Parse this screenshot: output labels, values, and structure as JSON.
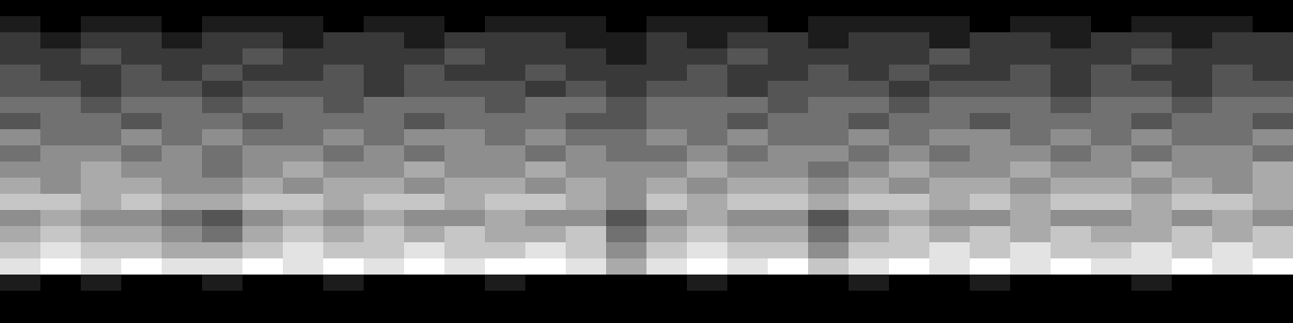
{
  "chart_data": {
    "type": "heatmap",
    "tick_labels": false,
    "cells": [
      [
        0,
        0,
        0,
        0,
        0,
        0,
        0,
        0,
        0,
        0,
        0,
        0,
        0,
        0,
        0,
        0,
        0,
        0,
        0,
        0,
        0,
        0,
        0,
        0,
        0,
        0,
        0,
        0,
        0,
        0,
        0,
        0
      ],
      [
        1,
        0,
        1,
        1,
        0,
        1,
        1,
        1,
        0,
        1,
        1,
        0,
        1,
        1,
        1,
        0,
        1,
        1,
        1,
        0,
        1,
        1,
        1,
        1,
        0,
        1,
        1,
        0,
        1,
        1,
        1,
        0
      ],
      [
        2,
        1,
        2,
        2,
        1,
        2,
        2,
        1,
        2,
        2,
        1,
        2,
        2,
        2,
        1,
        1,
        2,
        1,
        2,
        2,
        1,
        2,
        2,
        1,
        2,
        2,
        1,
        2,
        2,
        1,
        2,
        2
      ],
      [
        2,
        2,
        3,
        2,
        2,
        2,
        3,
        2,
        2,
        2,
        2,
        3,
        2,
        2,
        2,
        1,
        2,
        2,
        3,
        2,
        2,
        2,
        2,
        3,
        2,
        2,
        2,
        2,
        3,
        2,
        2,
        2
      ],
      [
        3,
        2,
        2,
        3,
        2,
        3,
        2,
        2,
        3,
        2,
        3,
        2,
        2,
        3,
        2,
        2,
        2,
        3,
        2,
        2,
        3,
        2,
        3,
        2,
        2,
        3,
        2,
        3,
        2,
        2,
        3,
        2
      ],
      [
        3,
        3,
        2,
        3,
        3,
        2,
        3,
        3,
        3,
        2,
        3,
        3,
        3,
        2,
        3,
        2,
        3,
        3,
        2,
        3,
        3,
        3,
        2,
        3,
        3,
        3,
        2,
        3,
        3,
        2,
        3,
        3
      ],
      [
        4,
        4,
        3,
        4,
        4,
        3,
        4,
        4,
        3,
        4,
        4,
        4,
        3,
        4,
        4,
        3,
        4,
        4,
        4,
        3,
        4,
        4,
        3,
        4,
        4,
        4,
        3,
        4,
        4,
        3,
        4,
        4
      ],
      [
        3,
        4,
        4,
        3,
        4,
        4,
        3,
        4,
        4,
        4,
        3,
        4,
        4,
        4,
        3,
        3,
        4,
        4,
        3,
        4,
        4,
        3,
        4,
        4,
        3,
        4,
        4,
        4,
        3,
        4,
        4,
        3
      ],
      [
        5,
        4,
        4,
        5,
        4,
        5,
        4,
        4,
        5,
        4,
        5,
        5,
        4,
        5,
        4,
        4,
        5,
        4,
        5,
        4,
        4,
        5,
        4,
        5,
        5,
        4,
        5,
        4,
        5,
        4,
        4,
        5
      ],
      [
        4,
        5,
        5,
        4,
        5,
        4,
        5,
        5,
        4,
        5,
        4,
        5,
        5,
        4,
        5,
        4,
        4,
        5,
        4,
        5,
        5,
        4,
        5,
        4,
        5,
        5,
        4,
        5,
        4,
        5,
        5,
        4
      ],
      [
        5,
        5,
        6,
        5,
        5,
        4,
        5,
        6,
        5,
        5,
        6,
        5,
        5,
        6,
        5,
        5,
        5,
        6,
        5,
        5,
        4,
        5,
        6,
        5,
        5,
        6,
        5,
        5,
        6,
        5,
        5,
        6
      ],
      [
        6,
        5,
        6,
        6,
        5,
        5,
        6,
        5,
        6,
        6,
        5,
        6,
        6,
        5,
        6,
        5,
        6,
        5,
        6,
        6,
        5,
        6,
        5,
        6,
        6,
        5,
        6,
        6,
        5,
        6,
        5,
        6
      ],
      [
        7,
        7,
        6,
        7,
        6,
        6,
        7,
        7,
        6,
        7,
        7,
        6,
        7,
        7,
        6,
        5,
        7,
        6,
        7,
        7,
        6,
        7,
        7,
        6,
        7,
        6,
        7,
        7,
        6,
        7,
        7,
        6
      ],
      [
        5,
        6,
        5,
        5,
        4,
        3,
        5,
        6,
        5,
        6,
        5,
        5,
        6,
        5,
        5,
        3,
        5,
        6,
        5,
        5,
        3,
        5,
        6,
        5,
        5,
        6,
        5,
        5,
        6,
        5,
        6,
        5
      ],
      [
        6,
        7,
        6,
        6,
        5,
        4,
        6,
        7,
        6,
        7,
        6,
        7,
        6,
        6,
        7,
        4,
        6,
        7,
        6,
        6,
        4,
        6,
        7,
        6,
        7,
        6,
        7,
        6,
        6,
        7,
        6,
        7
      ],
      [
        7,
        8,
        7,
        7,
        6,
        6,
        7,
        8,
        7,
        7,
        8,
        7,
        7,
        8,
        7,
        5,
        7,
        8,
        7,
        7,
        5,
        7,
        7,
        8,
        7,
        8,
        7,
        7,
        8,
        7,
        8,
        7
      ],
      [
        8,
        9,
        8,
        9,
        8,
        8,
        9,
        8,
        9,
        8,
        9,
        8,
        9,
        9,
        8,
        6,
        8,
        9,
        8,
        9,
        7,
        8,
        9,
        8,
        9,
        8,
        9,
        8,
        8,
        9,
        8,
        9
      ],
      [
        1,
        0,
        1,
        0,
        0,
        1,
        0,
        0,
        1,
        0,
        0,
        0,
        1,
        0,
        0,
        0,
        0,
        1,
        0,
        0,
        0,
        1,
        0,
        0,
        1,
        0,
        0,
        0,
        1,
        0,
        0,
        0
      ],
      [
        0,
        0,
        0,
        0,
        0,
        0,
        0,
        0,
        0,
        0,
        0,
        0,
        0,
        0,
        0,
        0,
        0,
        0,
        0,
        0,
        0,
        0,
        0,
        0,
        0,
        0,
        0,
        0,
        0,
        0,
        0,
        0
      ],
      [
        0,
        0,
        0,
        0,
        0,
        0,
        0,
        0,
        0,
        0,
        0,
        0,
        0,
        0,
        0,
        0,
        0,
        0,
        0,
        0,
        0,
        0,
        0,
        0,
        0,
        0,
        0,
        0,
        0,
        0,
        0,
        0
      ]
    ]
  }
}
